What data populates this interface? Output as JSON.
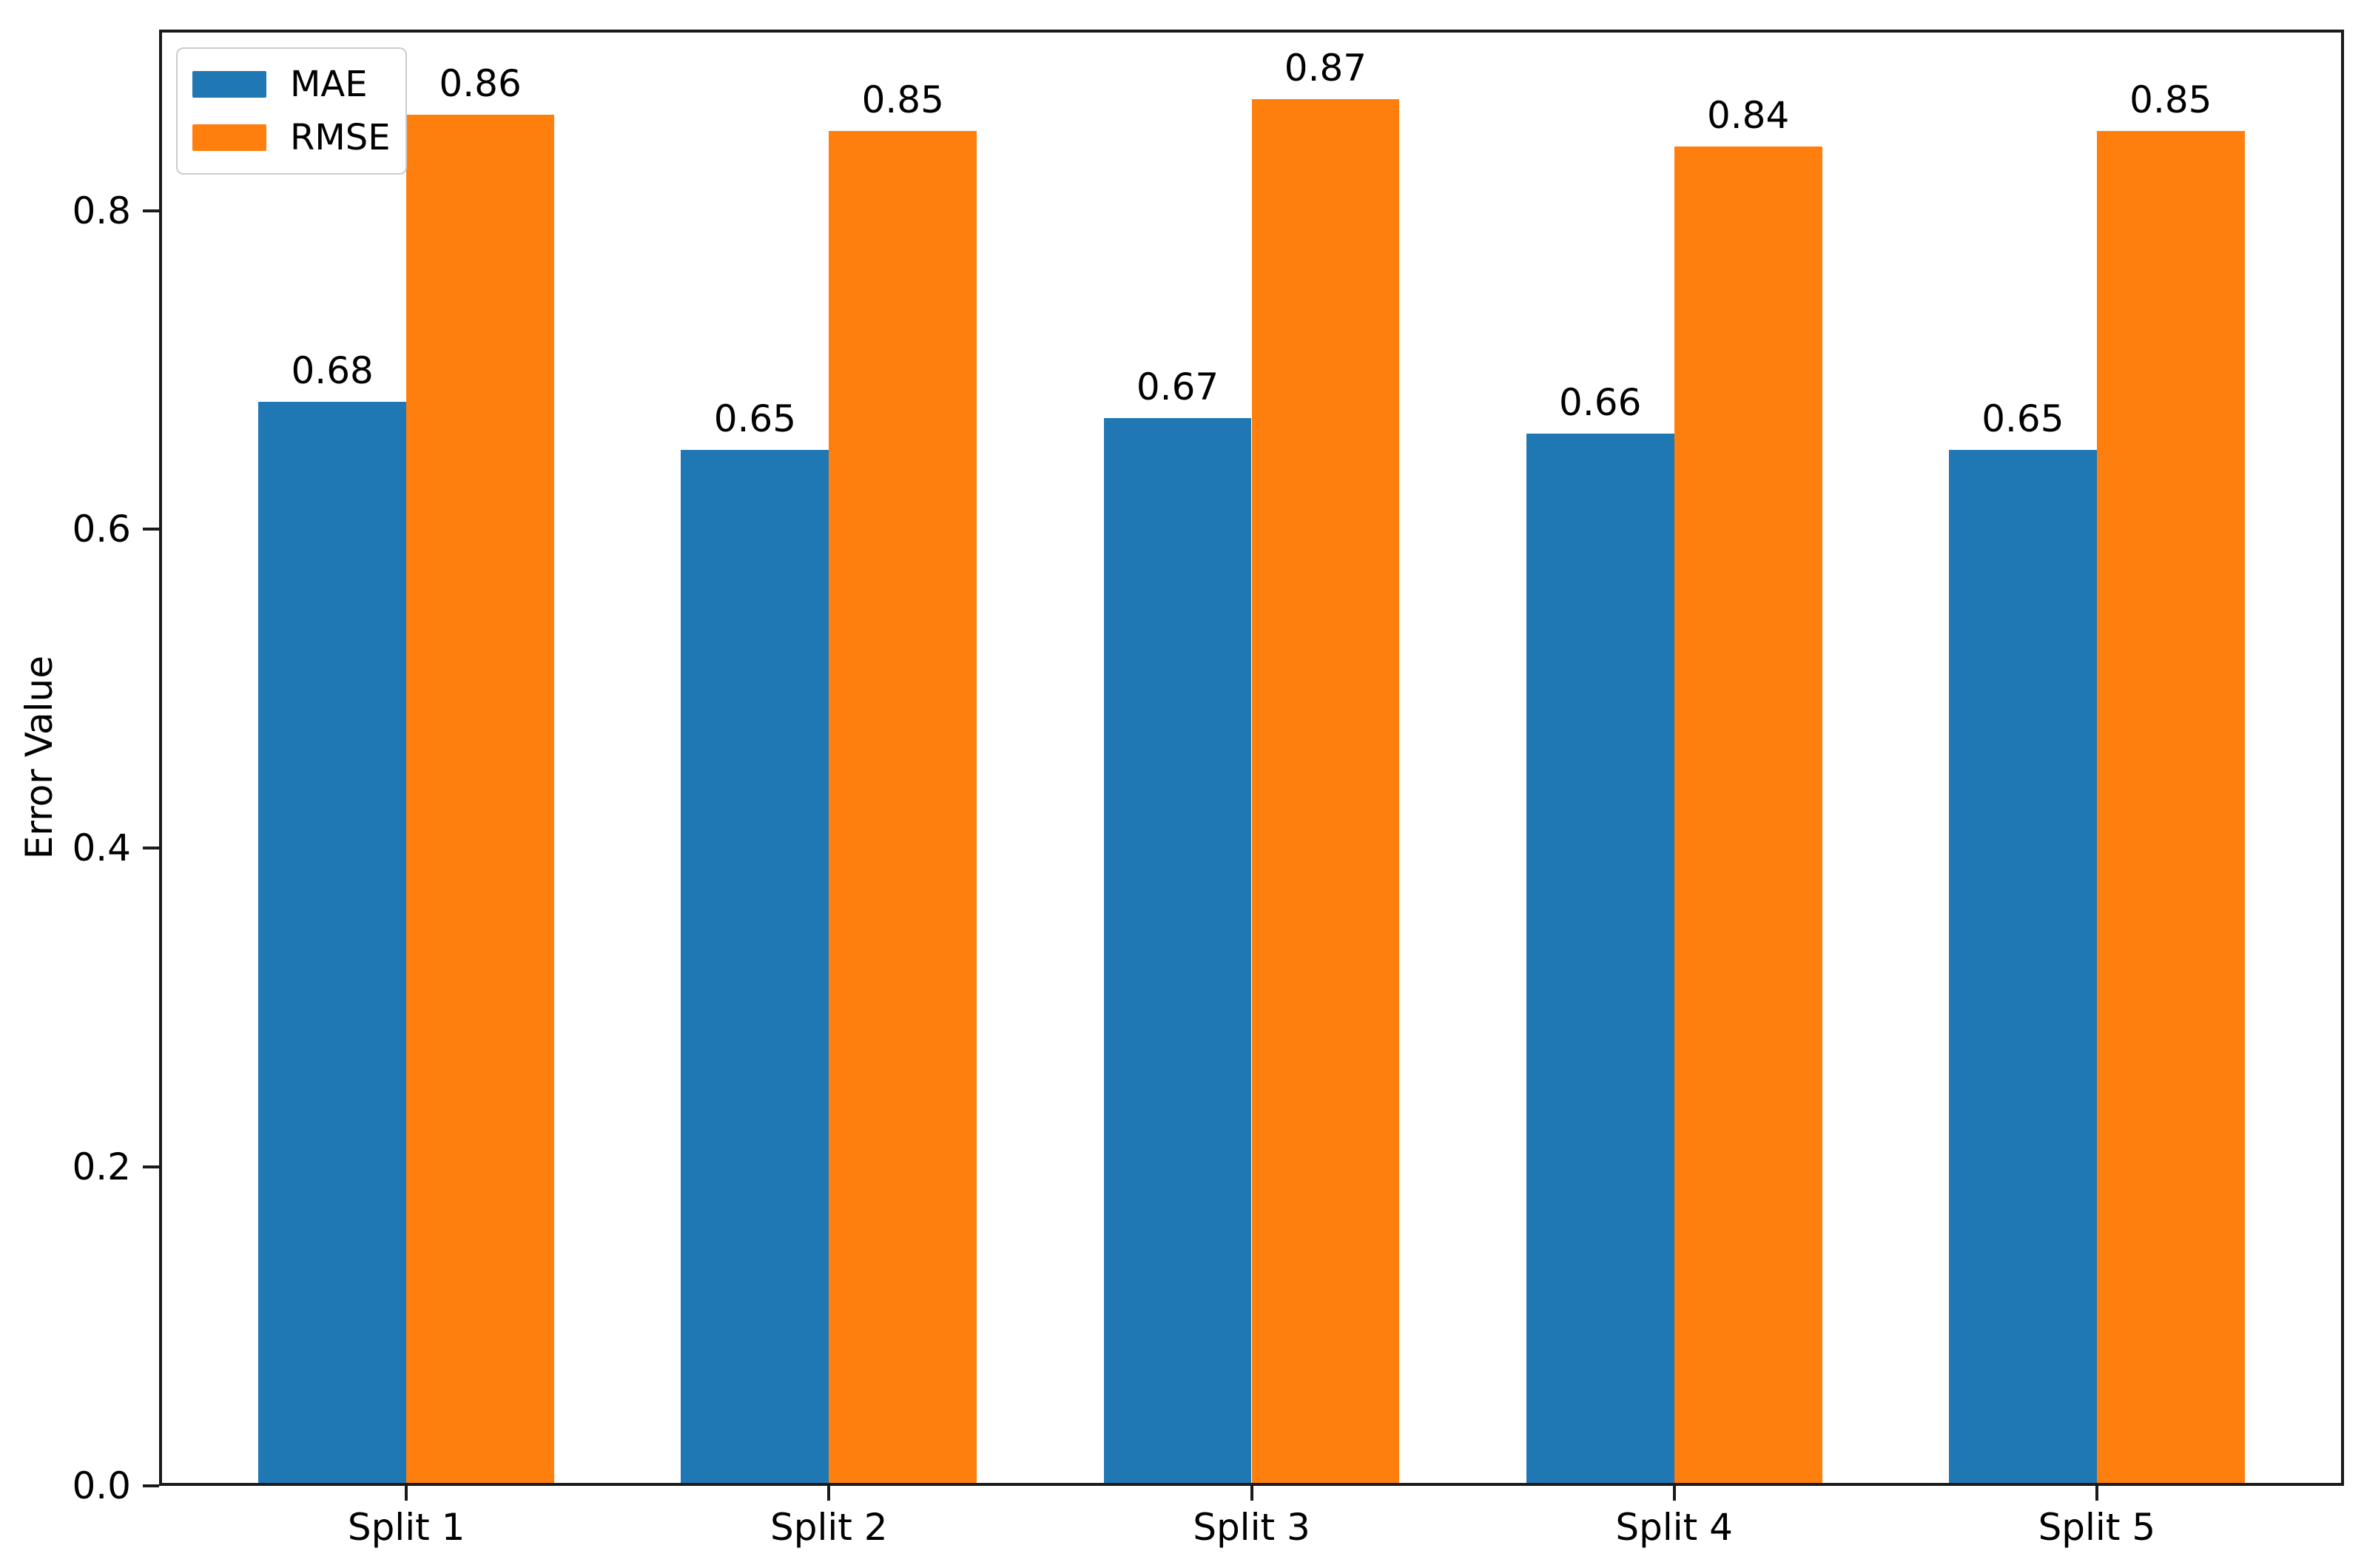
{
  "figure": {
    "background": "#ffffff"
  },
  "axes": {
    "ylabel": "Error Value",
    "yticklabels": [
      "0.0",
      "0.2",
      "0.4",
      "0.6",
      "0.8"
    ],
    "xticklabels": [
      "Split 1",
      "Split 2",
      "Split 3",
      "Split 4",
      "Split 5"
    ]
  },
  "chart_data": {
    "type": "bar",
    "title": "",
    "xlabel": "",
    "ylabel": "Error Value",
    "categories": [
      "Split 1",
      "Split 2",
      "Split 3",
      "Split 4",
      "Split 5"
    ],
    "series": [
      {
        "name": "MAE",
        "color": "#1f77b4",
        "values": [
          0.68,
          0.65,
          0.67,
          0.66,
          0.65
        ],
        "value_labels": [
          "0.68",
          "0.65",
          "0.67",
          "0.66",
          "0.65"
        ]
      },
      {
        "name": "RMSE",
        "color": "#ff7f0e",
        "values": [
          0.86,
          0.85,
          0.87,
          0.84,
          0.85
        ],
        "value_labels": [
          "0.86",
          "0.85",
          "0.87",
          "0.84",
          "0.85"
        ]
      }
    ],
    "ylim": [
      0,
      0.9135
    ],
    "yticks": [
      0.0,
      0.2,
      0.4,
      0.6,
      0.8
    ],
    "bar_width": 0.35,
    "grid": false,
    "legend_position": "upper left",
    "value_labels_shown": true
  }
}
